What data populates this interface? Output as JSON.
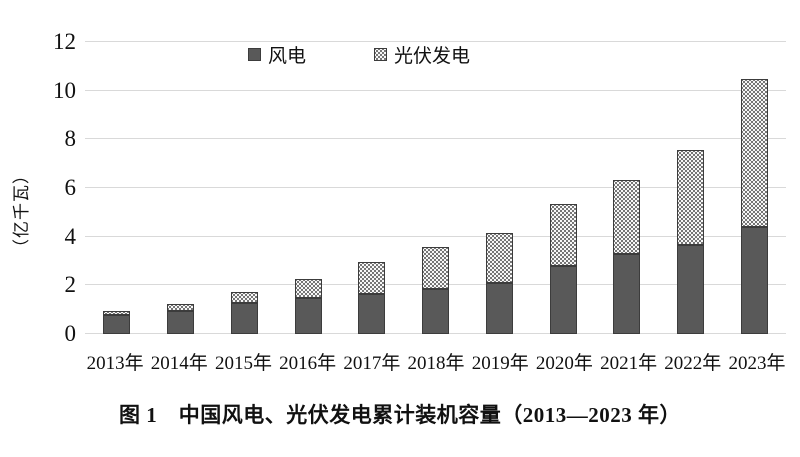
{
  "chart_data": {
    "type": "bar",
    "stacked": true,
    "categories": [
      "2013年",
      "2014年",
      "2015年",
      "2016年",
      "2017年",
      "2018年",
      "2019年",
      "2020年",
      "2021年",
      "2022年",
      "2023年"
    ],
    "series": [
      {
        "name": "风电",
        "pattern": "solid",
        "color": "#595959",
        "values": [
          0.77,
          0.96,
          1.29,
          1.49,
          1.64,
          1.84,
          2.1,
          2.81,
          3.28,
          3.65,
          4.41
        ]
      },
      {
        "name": "光伏发电",
        "pattern": "dotted",
        "color": "#6f6f6f",
        "values": [
          0.19,
          0.28,
          0.43,
          0.77,
          1.3,
          1.74,
          2.04,
          2.53,
          3.06,
          3.93,
          6.09
        ]
      }
    ],
    "totals": [
      0.96,
      1.24,
      1.72,
      2.26,
      2.94,
      3.58,
      4.14,
      5.34,
      6.34,
      7.58,
      10.5
    ],
    "ylabel": "（亿千瓦）",
    "ylim": [
      0,
      12
    ],
    "yticks": [
      0,
      2,
      4,
      6,
      8,
      10,
      12
    ],
    "grid": "horizontal",
    "gridline_color": "#d9d9d9",
    "legend_position": "top",
    "caption": "图 1　中国风电、光伏发电累计装机容量（2013—2023 年）"
  }
}
